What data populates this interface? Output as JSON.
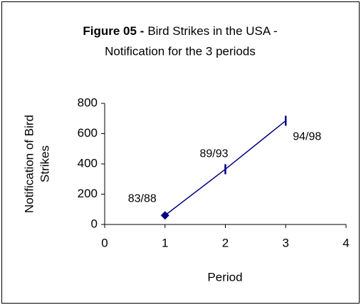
{
  "chart_data": {
    "type": "line",
    "title": "Figure 05 -",
    "subtitle": [
      "Bird Strikes in the USA -",
      "Notification for the 3 periods"
    ],
    "x_label": "Period",
    "y_label": [
      "Notification of Bird",
      "Strikes"
    ],
    "x": [
      1,
      2,
      3
    ],
    "series": [
      {
        "name": "Notification",
        "color": "#000080",
        "values": [
          60,
          365,
          685
        ],
        "point_labels": [
          "83/88",
          "89/93",
          "94/98"
        ],
        "markers": [
          "diamond",
          "dash",
          "dash"
        ]
      }
    ],
    "xlim": [
      0,
      4
    ],
    "xticks": [
      0,
      1,
      2,
      3,
      4
    ],
    "ylim": [
      0,
      800
    ],
    "yticks": [
      0,
      200,
      400,
      600,
      800
    ],
    "grid": false
  }
}
